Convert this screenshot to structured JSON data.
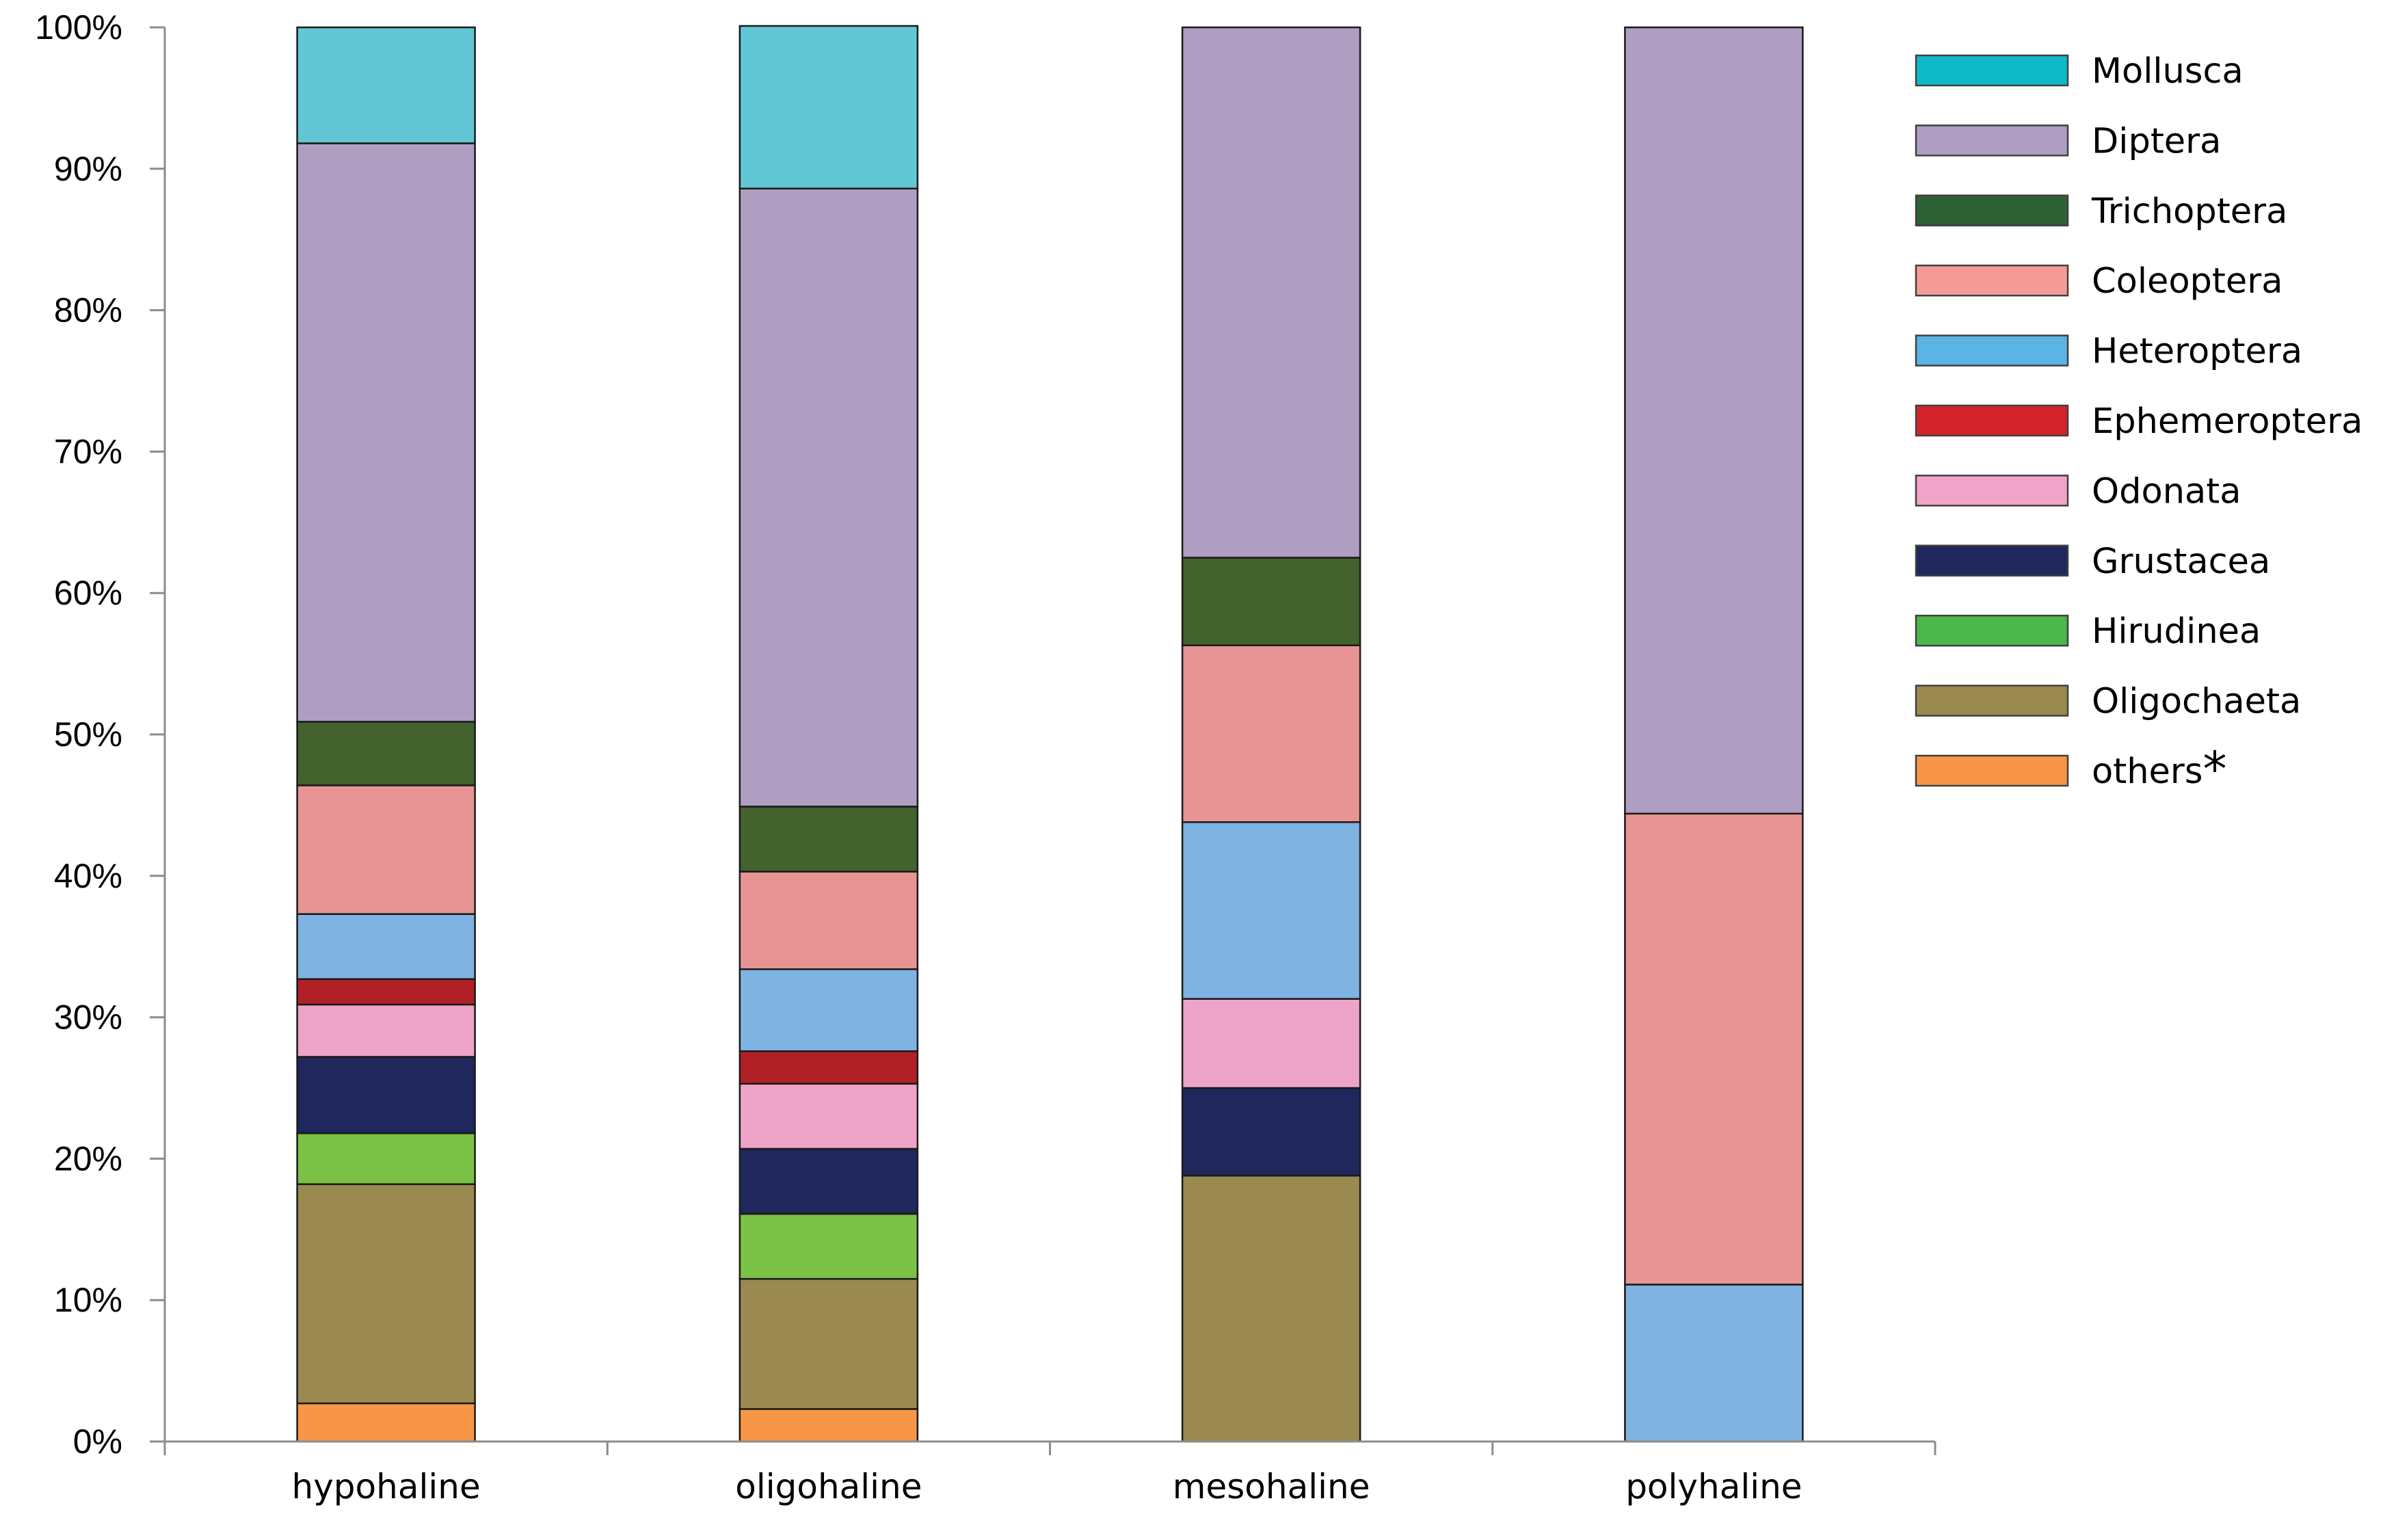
{
  "chart_data": {
    "type": "bar",
    "stacked": true,
    "normalized_percent": true,
    "title": "",
    "xlabel": "",
    "ylabel": "",
    "ylim": [
      0,
      100
    ],
    "ytick_values": [
      0,
      10,
      20,
      30,
      40,
      50,
      60,
      70,
      80,
      90,
      100
    ],
    "ytick_labels": [
      "0%",
      "10%",
      "20%",
      "30%",
      "40%",
      "50%",
      "60%",
      "70%",
      "80%",
      "90%",
      "100%"
    ],
    "categories": [
      "hypohaline",
      "oligohaline",
      "mesohaline",
      "polyhaline"
    ],
    "legend_position": "right",
    "legend_order": [
      "Mollusca",
      "Diptera",
      "Trichoptera",
      "Coleoptera",
      "Heteroptera",
      "Ephemeroptera",
      "Odonata",
      "Grustacea",
      "Hirudinea",
      "Oligochaeta",
      "others*"
    ],
    "series": [
      {
        "name": "others*",
        "legend_label": "others",
        "legend_suffix": "*",
        "color": "#f79646",
        "legend_color": "#f79646",
        "values": [
          2.7,
          2.3,
          0.0,
          0.0
        ]
      },
      {
        "name": "Oligochaeta",
        "color": "#9a8a4f",
        "legend_color": "#9a8a4f",
        "values": [
          15.5,
          9.2,
          18.8,
          0.0
        ]
      },
      {
        "name": "Hirudinea",
        "color": "#7bc145",
        "legend_color": "#4cb74a",
        "values": [
          3.6,
          4.6,
          0.0,
          0.0
        ]
      },
      {
        "name": "Grustacea",
        "color": "#1f275c",
        "legend_color": "#1f275c",
        "values": [
          5.4,
          4.6,
          6.2,
          0.0
        ]
      },
      {
        "name": "Odonata",
        "color": "#eea3c8",
        "legend_color": "#f2a3c8",
        "values": [
          3.7,
          4.6,
          6.3,
          0.0
        ]
      },
      {
        "name": "Ephemeroptera",
        "color": "#b22027",
        "legend_color": "#d3222a",
        "values": [
          1.8,
          2.3,
          0.0,
          0.0
        ]
      },
      {
        "name": "Heteroptera",
        "color": "#7fb3e1",
        "legend_color": "#5ab4e4",
        "values": [
          4.6,
          5.8,
          12.5,
          11.1
        ]
      },
      {
        "name": "Coleoptera",
        "color": "#e89494",
        "legend_color": "#f59b97",
        "values": [
          9.1,
          6.9,
          12.5,
          33.3
        ]
      },
      {
        "name": "Trichoptera",
        "color": "#43622d",
        "legend_color": "#2e6035",
        "values": [
          4.5,
          4.6,
          6.2,
          0.0
        ]
      },
      {
        "name": "Diptera",
        "color": "#b09dc2",
        "legend_color": "#b09dc2",
        "values": [
          40.9,
          43.7,
          37.5,
          55.6
        ]
      },
      {
        "name": "Mollusca",
        "color": "#62c7d4",
        "legend_color": "#0ebac7",
        "values": [
          8.2,
          11.5,
          0.0,
          0.0
        ]
      }
    ]
  }
}
